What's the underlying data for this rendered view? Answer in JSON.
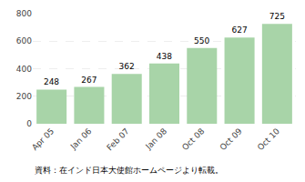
{
  "chart_data": {
    "type": "bar",
    "categories": [
      "Apr 05",
      "Jan 06",
      "Feb 07",
      "Jan 08",
      "Oct 08",
      "Oct 09",
      "Oct 10"
    ],
    "values": [
      248,
      267,
      362,
      438,
      550,
      627,
      725
    ],
    "color": "#a8d4a8",
    "ylim": [
      0,
      800
    ],
    "yticks": [
      0,
      200,
      400,
      600,
      800
    ],
    "grid": true,
    "data_labels": true,
    "annotations": [
      "資料：在インド日本大使館ホームページより転載。"
    ]
  }
}
